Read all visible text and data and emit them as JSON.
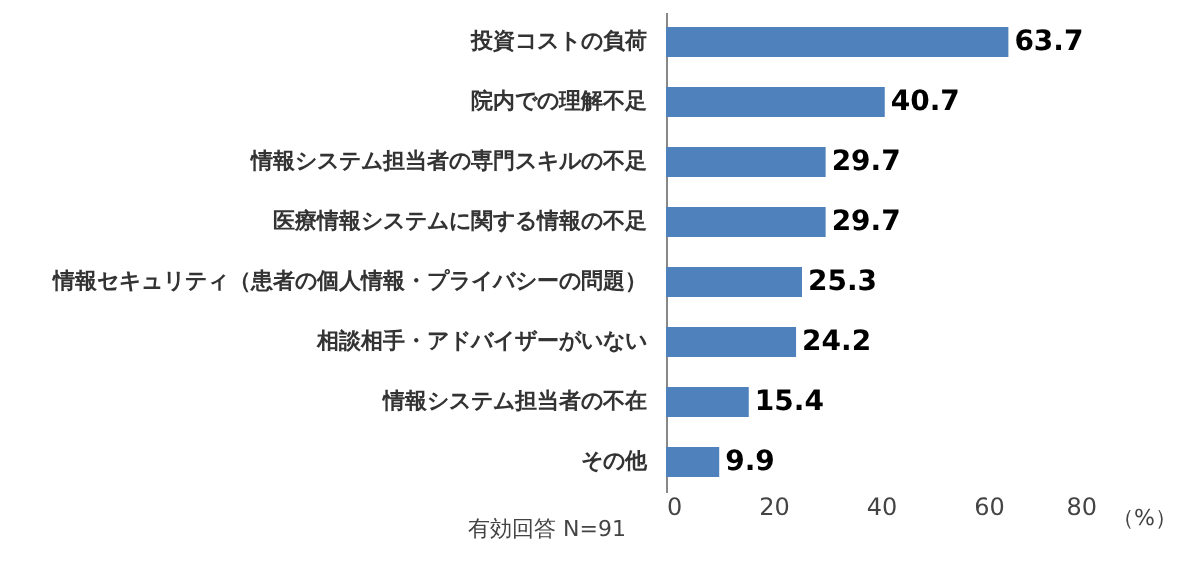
{
  "chart_data": {
    "type": "bar",
    "orientation": "horizontal",
    "categories": [
      "投資コストの負荷",
      "院内での理解不足",
      "情報システム担当者の専門スキルの不足",
      "医療情報システムに関する情報の不足",
      "情報セキュリティ（患者の個人情報・プライバシーの問題）",
      "相談相手・アドバイザーがいない",
      "情報システム担当者の不在",
      "その他"
    ],
    "values": [
      63.7,
      40.7,
      29.7,
      29.7,
      25.3,
      24.2,
      15.4,
      9.9
    ],
    "color": "#4f81bd",
    "xlim": [
      0,
      80
    ],
    "xticks": [
      0,
      20,
      40,
      60,
      80
    ],
    "xlabel": "（%）",
    "annotations": [
      "有効回答 N=91"
    ],
    "data_labels": true,
    "grid": false
  }
}
